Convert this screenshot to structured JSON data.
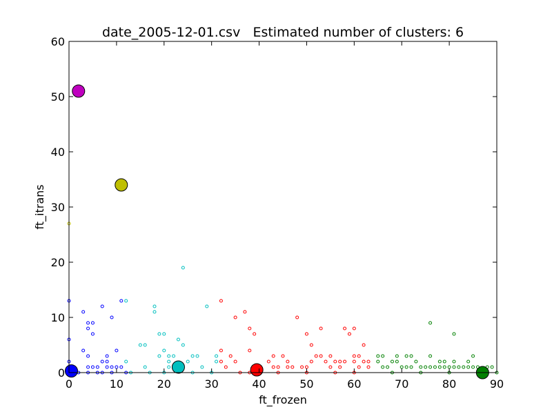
{
  "chart_data": {
    "type": "scatter",
    "title": "date_2005-12-01.csv   Estimated number of clusters: 6",
    "xlabel": "ft_frozen",
    "ylabel": "ft_itrans",
    "xlim": [
      0,
      90
    ],
    "ylim": [
      0,
      60
    ],
    "xticks": [
      0,
      10,
      20,
      30,
      40,
      50,
      60,
      70,
      80,
      90
    ],
    "yticks": [
      0,
      10,
      20,
      30,
      40,
      50,
      60
    ],
    "grid": false,
    "legend": "none",
    "clusters": [
      {
        "color": "#0000ff",
        "center": [
          0.5,
          0.3
        ],
        "points": [
          [
            0,
            13
          ],
          [
            0,
            6
          ],
          [
            0,
            2
          ],
          [
            0,
            1
          ],
          [
            0,
            0.3
          ],
          [
            0.5,
            0.5
          ],
          [
            1,
            0.3
          ],
          [
            1.5,
            0.5
          ],
          [
            3,
            11
          ],
          [
            3,
            4
          ],
          [
            4,
            9
          ],
          [
            4,
            8
          ],
          [
            4,
            3
          ],
          [
            4,
            1
          ],
          [
            4,
            0
          ],
          [
            5,
            9
          ],
          [
            5,
            7
          ],
          [
            5,
            1
          ],
          [
            6,
            1
          ],
          [
            7,
            12
          ],
          [
            7,
            2
          ],
          [
            7,
            0
          ],
          [
            8,
            3
          ],
          [
            8,
            2
          ],
          [
            8,
            1
          ],
          [
            9,
            10
          ],
          [
            9,
            1
          ],
          [
            10,
            4
          ],
          [
            10,
            1
          ],
          [
            11,
            13
          ],
          [
            11,
            1
          ],
          [
            2,
            0
          ],
          [
            6,
            0
          ],
          [
            9,
            0
          ],
          [
            12,
            0
          ]
        ]
      },
      {
        "color": "#00bfbf",
        "center": [
          23,
          1
        ],
        "points": [
          [
            12,
            13
          ],
          [
            12,
            2
          ],
          [
            13,
            0
          ],
          [
            15,
            5
          ],
          [
            16,
            5
          ],
          [
            16,
            1
          ],
          [
            17,
            0
          ],
          [
            18,
            12
          ],
          [
            18,
            11
          ],
          [
            19,
            7
          ],
          [
            19,
            3
          ],
          [
            20,
            7
          ],
          [
            20,
            4
          ],
          [
            21,
            3
          ],
          [
            21,
            2
          ],
          [
            21,
            1
          ],
          [
            22,
            3
          ],
          [
            22,
            1
          ],
          [
            23,
            6
          ],
          [
            24,
            19
          ],
          [
            24,
            5
          ],
          [
            25,
            2
          ],
          [
            26,
            3
          ],
          [
            27,
            3
          ],
          [
            28,
            1
          ],
          [
            29,
            12
          ],
          [
            31,
            3
          ],
          [
            31,
            2
          ],
          [
            20,
            0
          ],
          [
            26,
            0
          ],
          [
            30,
            0
          ]
        ]
      },
      {
        "color": "#ff0000",
        "center": [
          39.5,
          0.5
        ],
        "points": [
          [
            32,
            13
          ],
          [
            32,
            4
          ],
          [
            32,
            2
          ],
          [
            33,
            1
          ],
          [
            34,
            3
          ],
          [
            35,
            10
          ],
          [
            35,
            2
          ],
          [
            37,
            11
          ],
          [
            38,
            8
          ],
          [
            38,
            4
          ],
          [
            39,
            7
          ],
          [
            36,
            0
          ],
          [
            38,
            0
          ],
          [
            42,
            2
          ],
          [
            43,
            3
          ],
          [
            43,
            1
          ],
          [
            44,
            1
          ],
          [
            45,
            3
          ],
          [
            46,
            2
          ],
          [
            46,
            1
          ],
          [
            47,
            1
          ],
          [
            48,
            10
          ],
          [
            49,
            1
          ],
          [
            50,
            7
          ],
          [
            50,
            1
          ],
          [
            51,
            5
          ],
          [
            51,
            2
          ],
          [
            52,
            3
          ],
          [
            53,
            8
          ],
          [
            53,
            3
          ],
          [
            54,
            2
          ],
          [
            55,
            3
          ],
          [
            55,
            1
          ],
          [
            56,
            2
          ],
          [
            57,
            2
          ],
          [
            57,
            1
          ],
          [
            58,
            8
          ],
          [
            58,
            2
          ],
          [
            59,
            7
          ],
          [
            60,
            8
          ],
          [
            60,
            3
          ],
          [
            60,
            2
          ],
          [
            61,
            3
          ],
          [
            61,
            1
          ],
          [
            62,
            5
          ],
          [
            62,
            2
          ],
          [
            63,
            2
          ],
          [
            63,
            1
          ],
          [
            44,
            0
          ],
          [
            50,
            0
          ],
          [
            56,
            0
          ],
          [
            60,
            0
          ]
        ]
      },
      {
        "color": "#008000",
        "center": [
          87,
          0
        ],
        "points": [
          [
            65,
            3
          ],
          [
            65,
            2
          ],
          [
            66,
            3
          ],
          [
            66,
            1
          ],
          [
            67,
            1
          ],
          [
            68,
            2
          ],
          [
            69,
            3
          ],
          [
            69,
            2
          ],
          [
            70,
            1
          ],
          [
            71,
            3
          ],
          [
            71,
            1
          ],
          [
            72,
            3
          ],
          [
            72,
            1
          ],
          [
            73,
            2
          ],
          [
            74,
            1
          ],
          [
            75,
            1
          ],
          [
            76,
            9
          ],
          [
            76,
            3
          ],
          [
            76,
            1
          ],
          [
            77,
            1
          ],
          [
            78,
            2
          ],
          [
            78,
            1
          ],
          [
            79,
            2
          ],
          [
            79,
            1
          ],
          [
            80,
            1
          ],
          [
            81,
            7
          ],
          [
            81,
            2
          ],
          [
            81,
            1
          ],
          [
            82,
            1
          ],
          [
            83,
            1
          ],
          [
            84,
            2
          ],
          [
            84,
            1
          ],
          [
            85,
            3
          ],
          [
            85,
            1
          ],
          [
            86,
            1
          ],
          [
            88,
            1
          ],
          [
            89,
            1
          ],
          [
            68,
            0
          ],
          [
            74,
            0
          ],
          [
            80,
            0
          ],
          [
            86,
            0
          ],
          [
            90,
            0
          ]
        ]
      },
      {
        "color": "#bfbf00",
        "center": [
          11,
          34
        ],
        "points": [
          [
            0,
            27
          ]
        ]
      },
      {
        "color": "#bf00bf",
        "center": [
          2,
          51
        ],
        "points": []
      }
    ]
  }
}
